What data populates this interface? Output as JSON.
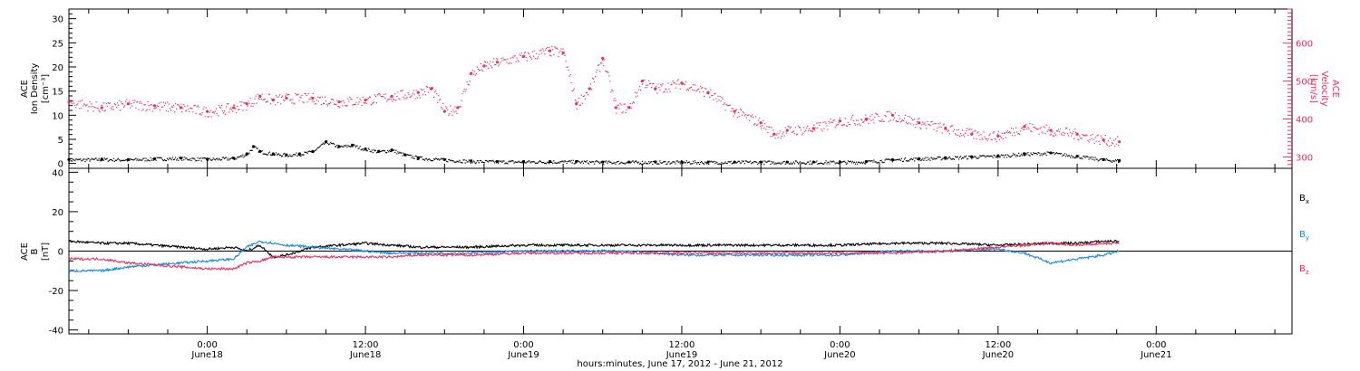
{
  "colors": {
    "black": "#000000",
    "red": "#e8315c",
    "blue": "#1a86e0"
  },
  "x_axis": {
    "title": "hours:minutes, June 17, 2012 - June 21, 2012",
    "range_hours": [
      -10.5,
      82.3
    ],
    "ticks": [
      {
        "hour": 0,
        "time": "0:00",
        "day": "June18"
      },
      {
        "hour": 12,
        "time": "12:00",
        "day": "June18"
      },
      {
        "hour": 24,
        "time": "0:00",
        "day": "June19"
      },
      {
        "hour": 36,
        "time": "12:00",
        "day": "June19"
      },
      {
        "hour": 48,
        "time": "0:00",
        "day": "June20"
      },
      {
        "hour": 60,
        "time": "12:00",
        "day": "June20"
      },
      {
        "hour": 72,
        "time": "0:00",
        "day": "June21"
      }
    ]
  },
  "chart_data": [
    {
      "type": "scatter",
      "panel": "top",
      "ylabel_left": [
        "ACE",
        "Ion Density",
        "[cm⁻³]"
      ],
      "ylabel_right": [
        "ACE",
        "Velocity",
        "[km/s]"
      ],
      "ylim_left": [
        -1,
        32
      ],
      "ylim_right": [
        270,
        690
      ],
      "yticks_left": [
        0,
        5,
        10,
        15,
        20,
        25,
        30
      ],
      "yticks_right": [
        300,
        400,
        500,
        600
      ],
      "series": [
        {
          "axis": "left",
          "color": "#000000",
          "x": [
            -10.5,
            -8,
            -6,
            -4,
            -2,
            0,
            2,
            3,
            3.5,
            4,
            5,
            6,
            7,
            8,
            9,
            10,
            11,
            12,
            13,
            14,
            15,
            16,
            18,
            20,
            22,
            24,
            26,
            28,
            30,
            32,
            34,
            36,
            38,
            40,
            42,
            44,
            46,
            48,
            50,
            52,
            54,
            56,
            58,
            60,
            62,
            64,
            66,
            68,
            69.2
          ],
          "values": [
            0.8,
            0.9,
            0.8,
            1.0,
            1.1,
            0.9,
            1.1,
            2.0,
            3.5,
            2.5,
            2.0,
            1.8,
            2.0,
            2.5,
            4.5,
            3.5,
            3.8,
            3.0,
            2.5,
            2.8,
            1.8,
            1.2,
            0.8,
            0.5,
            0.4,
            0.4,
            0.4,
            0.4,
            0.3,
            0.3,
            0.3,
            0.3,
            0.3,
            0.3,
            0.3,
            0.3,
            0.3,
            0.3,
            0.4,
            0.8,
            1.0,
            1.2,
            1.4,
            1.6,
            2.0,
            2.2,
            1.5,
            0.8,
            0.6
          ]
        },
        {
          "axis": "right",
          "color": "#e8315c",
          "x": [
            -10.5,
            -8,
            -6,
            -4,
            -2,
            0,
            2,
            3,
            4,
            5,
            6,
            8,
            10,
            12,
            14,
            16,
            17,
            18,
            19,
            20,
            21,
            22,
            24,
            26,
            27,
            28,
            29,
            30,
            31,
            32,
            33,
            34,
            36,
            38,
            40,
            42,
            43,
            44,
            46,
            48,
            50,
            52,
            54,
            56,
            58,
            60,
            62,
            64,
            66,
            68,
            69.2
          ],
          "values": [
            445,
            430,
            440,
            435,
            430,
            420,
            430,
            440,
            460,
            450,
            455,
            455,
            445,
            450,
            460,
            470,
            480,
            420,
            430,
            520,
            540,
            550,
            565,
            580,
            575,
            440,
            480,
            560,
            430,
            430,
            500,
            480,
            495,
            470,
            420,
            390,
            360,
            370,
            375,
            395,
            400,
            410,
            390,
            375,
            360,
            355,
            380,
            370,
            360,
            345,
            340
          ]
        }
      ]
    },
    {
      "type": "line",
      "panel": "bottom",
      "ylabel_left": [
        "ACE",
        "B",
        "[nT]"
      ],
      "ylim": [
        -42,
        42
      ],
      "yticks": [
        -40,
        -20,
        0,
        20,
        40
      ],
      "series": [
        {
          "name": "B",
          "subscript": "x",
          "color": "#000000",
          "x": [
            -10.5,
            -8,
            -6,
            -4,
            -2,
            0,
            2,
            3,
            4,
            5,
            6,
            8,
            10,
            12,
            14,
            16,
            18,
            20,
            24,
            28,
            32,
            36,
            40,
            44,
            48,
            52,
            56,
            60,
            64,
            66,
            68,
            69.2
          ],
          "values": [
            5,
            4,
            4,
            3,
            2,
            1,
            2,
            0,
            3,
            -3,
            -2,
            2,
            3,
            4,
            3,
            2,
            2,
            2,
            3,
            3,
            3,
            3,
            3,
            3,
            3,
            4,
            4,
            3,
            4,
            4,
            5,
            5
          ]
        },
        {
          "name": "B",
          "subscript": "y",
          "color": "#1a86e0",
          "x": [
            -10.5,
            -8,
            -6,
            -4,
            -2,
            0,
            2,
            3,
            4,
            5,
            6,
            8,
            10,
            12,
            14,
            16,
            18,
            20,
            24,
            28,
            32,
            36,
            40,
            44,
            48,
            50,
            52,
            56,
            60,
            62,
            64,
            66,
            68,
            69.2
          ],
          "values": [
            -10,
            -10,
            -8,
            -7,
            -6,
            -5,
            -4,
            2,
            5,
            4,
            3,
            2,
            1,
            0,
            -1,
            -1,
            -1,
            -1,
            0,
            0,
            0,
            -2,
            -2,
            -2,
            -2,
            -1,
            0,
            0,
            1,
            -1,
            -6,
            -4,
            -2,
            0
          ]
        },
        {
          "name": "B",
          "subscript": "z",
          "color": "#e8315c",
          "x": [
            -10.5,
            -8,
            -6,
            -4,
            -2,
            0,
            2,
            3,
            4,
            5,
            6,
            8,
            10,
            12,
            14,
            16,
            18,
            20,
            24,
            28,
            32,
            36,
            40,
            44,
            48,
            52,
            56,
            60,
            62,
            64,
            66,
            68,
            69.2
          ],
          "values": [
            -4,
            -4,
            -6,
            -7,
            -8,
            -9,
            -9,
            -6,
            -5,
            -3,
            -3,
            -3,
            -3,
            -3,
            -3,
            -2,
            -2,
            -2,
            -1,
            -1,
            -1,
            -1,
            -1,
            -1,
            -1,
            -1,
            0,
            2,
            3,
            4,
            3,
            4,
            4
          ]
        }
      ]
    }
  ]
}
